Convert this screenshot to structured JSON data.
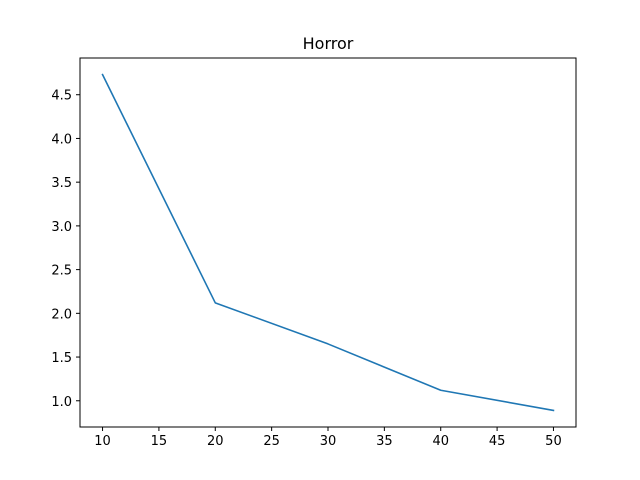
{
  "chart_data": {
    "type": "line",
    "title": "Horror",
    "xlabel": "",
    "ylabel": "",
    "x": [
      10,
      20,
      30,
      40,
      50
    ],
    "series": [
      {
        "values": [
          4.73,
          2.12,
          1.65,
          1.12,
          0.89
        ],
        "color": "#1f77b4"
      }
    ],
    "xlim": [
      8,
      52
    ],
    "ylim": [
      0.7,
      4.92
    ],
    "xticks": [
      10,
      15,
      20,
      25,
      30,
      35,
      40,
      45,
      50
    ],
    "xtick_labels": [
      "10",
      "15",
      "20",
      "25",
      "30",
      "35",
      "40",
      "45",
      "50"
    ],
    "yticks": [
      1.0,
      1.5,
      2.0,
      2.5,
      3.0,
      3.5,
      4.0,
      4.5
    ],
    "ytick_labels": [
      "1.0",
      "1.5",
      "2.0",
      "2.5",
      "3.0",
      "3.5",
      "4.0",
      "4.5"
    ],
    "grid": false,
    "legend": "none"
  }
}
